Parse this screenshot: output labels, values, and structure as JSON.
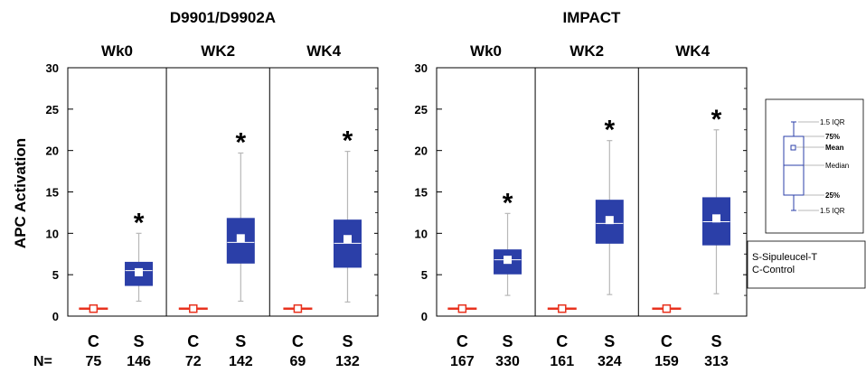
{
  "figure": {
    "y_axis_label": "APC Activation",
    "n_prefix": "N="
  },
  "legend_box": {
    "upper_whisker": "1.5 IQR",
    "q3": "75%",
    "mean": "Mean",
    "median": "Median",
    "q1": "25%",
    "lower_whisker": "1.5 IQR"
  },
  "group_legend": [
    "S-Sipuleucel-T",
    "C-Control"
  ],
  "colors": {
    "sipuleucel_box": "#2b3fa8",
    "sipuleucel_whisker": "#b8b8b8",
    "control": "#e8321e",
    "median_line": "#ffffff",
    "mean_marker": "#ffffff"
  },
  "chart_data": [
    {
      "type": "box",
      "title": "D9901/D9902A",
      "ylabel": "APC Activation",
      "ylim": [
        0,
        30
      ],
      "yticks": [
        0,
        5,
        10,
        15,
        20,
        25,
        30
      ],
      "grid": false,
      "groups": [
        {
          "label": "Wk0",
          "boxes": [
            {
              "category": "C",
              "n": "75",
              "whisker_low": 0.8,
              "q1": 0.8,
              "median": 0.9,
              "mean": 0.9,
              "q3": 1.0,
              "whisker_high": 1.0,
              "significant": false
            },
            {
              "category": "S",
              "n": "146",
              "whisker_low": 1.8,
              "q1": 3.7,
              "median": 5.5,
              "mean": 5.3,
              "q3": 6.5,
              "whisker_high": 10.0,
              "significant": true
            }
          ]
        },
        {
          "label": "WK2",
          "boxes": [
            {
              "category": "C",
              "n": "72",
              "whisker_low": 0.8,
              "q1": 0.8,
              "median": 0.9,
              "mean": 0.9,
              "q3": 1.0,
              "whisker_high": 1.0,
              "significant": false
            },
            {
              "category": "S",
              "n": "142",
              "whisker_low": 1.8,
              "q1": 6.4,
              "median": 8.9,
              "mean": 9.4,
              "q3": 11.8,
              "whisker_high": 19.7,
              "significant": true
            }
          ]
        },
        {
          "label": "WK4",
          "boxes": [
            {
              "category": "C",
              "n": "69",
              "whisker_low": 0.8,
              "q1": 0.8,
              "median": 0.9,
              "mean": 0.9,
              "q3": 1.0,
              "whisker_high": 1.0,
              "significant": false
            },
            {
              "category": "S",
              "n": "132",
              "whisker_low": 1.7,
              "q1": 5.9,
              "median": 8.8,
              "mean": 9.3,
              "q3": 11.6,
              "whisker_high": 19.9,
              "significant": true
            }
          ]
        }
      ]
    },
    {
      "type": "box",
      "title": "IMPACT",
      "ylabel": "",
      "ylim": [
        0,
        30
      ],
      "yticks": [
        0,
        5,
        10,
        15,
        20,
        25,
        30
      ],
      "grid": false,
      "groups": [
        {
          "label": "Wk0",
          "boxes": [
            {
              "category": "C",
              "n": "167",
              "whisker_low": 0.8,
              "q1": 0.8,
              "median": 0.9,
              "mean": 0.9,
              "q3": 1.0,
              "whisker_high": 1.0,
              "significant": false
            },
            {
              "category": "S",
              "n": "330",
              "whisker_low": 2.5,
              "q1": 5.1,
              "median": 6.8,
              "mean": 6.8,
              "q3": 8.0,
              "whisker_high": 12.4,
              "significant": true
            }
          ]
        },
        {
          "label": "WK2",
          "boxes": [
            {
              "category": "C",
              "n": "161",
              "whisker_low": 0.8,
              "q1": 0.8,
              "median": 0.9,
              "mean": 0.9,
              "q3": 1.0,
              "whisker_high": 1.0,
              "significant": false
            },
            {
              "category": "S",
              "n": "324",
              "whisker_low": 2.6,
              "q1": 8.8,
              "median": 11.2,
              "mean": 11.6,
              "q3": 14.0,
              "whisker_high": 21.2,
              "significant": true
            }
          ]
        },
        {
          "label": "WK4",
          "boxes": [
            {
              "category": "C",
              "n": "159",
              "whisker_low": 0.8,
              "q1": 0.8,
              "median": 0.9,
              "mean": 0.9,
              "q3": 1.0,
              "whisker_high": 1.0,
              "significant": false
            },
            {
              "category": "S",
              "n": "313",
              "whisker_low": 2.7,
              "q1": 8.6,
              "median": 11.4,
              "mean": 11.8,
              "q3": 14.3,
              "whisker_high": 22.5,
              "significant": true
            }
          ]
        }
      ]
    }
  ]
}
